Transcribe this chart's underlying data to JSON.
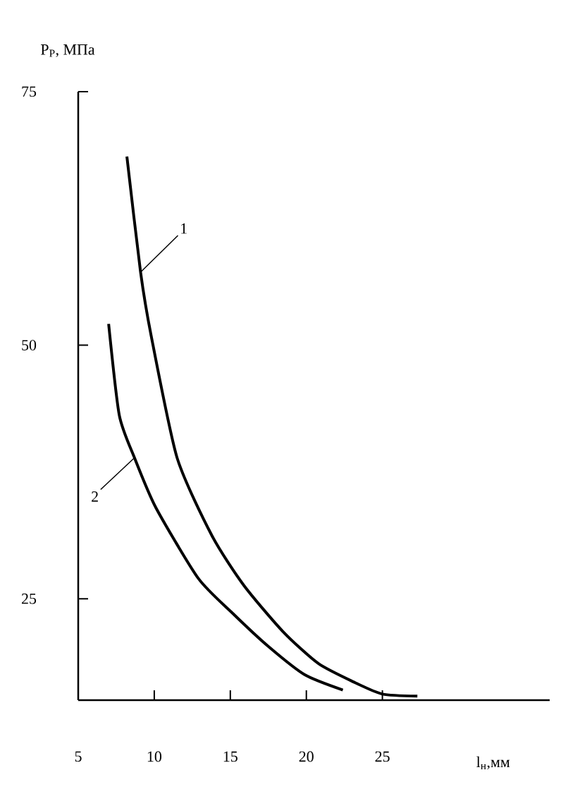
{
  "chart_data": {
    "type": "line",
    "xlabel": "l$_{н}$,мм",
    "ylabel": "P$_{Р}$, МПа",
    "xlim": [
      5,
      36
    ],
    "ylim": [
      15,
      75
    ],
    "xticks": [
      5,
      10,
      15,
      20,
      25
    ],
    "yticks": [
      25,
      50,
      75
    ],
    "grid": false,
    "marker": "none",
    "line_style": "solid",
    "series": [
      {
        "name": "1",
        "color": "#000000",
        "x": [
          8.2,
          9.1,
          9.8,
          11.5,
          13.8,
          15.9,
          18.5,
          20.8,
          23.1,
          25,
          27.3
        ],
        "values": [
          68.6,
          57.2,
          50.9,
          38.9,
          31.2,
          26.3,
          21.7,
          18.6,
          16.8,
          15.6,
          15.4
        ]
      },
      {
        "name": "2",
        "color": "#000000",
        "x": [
          7.0,
          7.7,
          8.7,
          10.1,
          12.9,
          15.2,
          17.5,
          19.9,
          22.4
        ],
        "values": [
          52.1,
          43.1,
          38.9,
          34.0,
          27.0,
          23.5,
          20.3,
          17.5,
          16.0
        ]
      }
    ]
  }
}
